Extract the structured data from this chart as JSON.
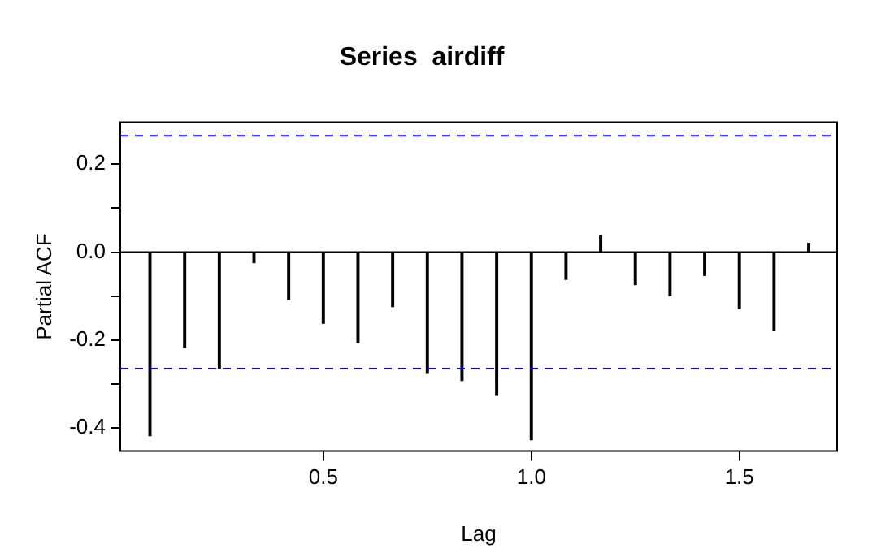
{
  "chart_data": {
    "type": "bar",
    "title": "Series  airdiff",
    "xlabel": "Lag",
    "ylabel": "Partial ACF",
    "x": [
      0.0833,
      0.1667,
      0.25,
      0.3333,
      0.4167,
      0.5,
      0.5833,
      0.6667,
      0.75,
      0.8333,
      0.9167,
      1.0,
      1.0833,
      1.1667,
      1.25,
      1.3333,
      1.4167,
      1.5,
      1.5833,
      1.6667
    ],
    "values": [
      -0.418,
      -0.217,
      -0.264,
      -0.024,
      -0.108,
      -0.162,
      -0.206,
      -0.124,
      -0.276,
      -0.292,
      -0.326,
      -0.427,
      -0.062,
      0.038,
      -0.074,
      -0.099,
      -0.053,
      -0.129,
      -0.179,
      0.02
    ],
    "color": "#000000",
    "xlim": [
      0.012,
      1.735
    ],
    "ylim": [
      -0.453,
      0.296
    ],
    "xticks": [
      {
        "value": 0.5,
        "label": "0.5"
      },
      {
        "value": 1.0,
        "label": "1.0"
      },
      {
        "value": 1.5,
        "label": "1.5"
      }
    ],
    "yticks": [
      {
        "value": -0.4,
        "label": "-0.4"
      },
      {
        "value": -0.3,
        "label": null
      },
      {
        "value": -0.2,
        "label": "-0.2"
      },
      {
        "value": -0.1,
        "label": null
      },
      {
        "value": 0.0,
        "label": "0.0"
      },
      {
        "value": 0.1,
        "label": null
      },
      {
        "value": 0.2,
        "label": "0.2"
      }
    ],
    "ref_lines": [
      {
        "axis": "y",
        "value": 0,
        "color": "#000000",
        "line_style": "solid"
      },
      {
        "axis": "y",
        "value": 0.265,
        "color": "#0000ff",
        "line_style": "dashed"
      },
      {
        "axis": "y",
        "value": -0.265,
        "color": "#0000ff",
        "line_style": "dashed"
      }
    ],
    "grid": false,
    "legend": false
  }
}
